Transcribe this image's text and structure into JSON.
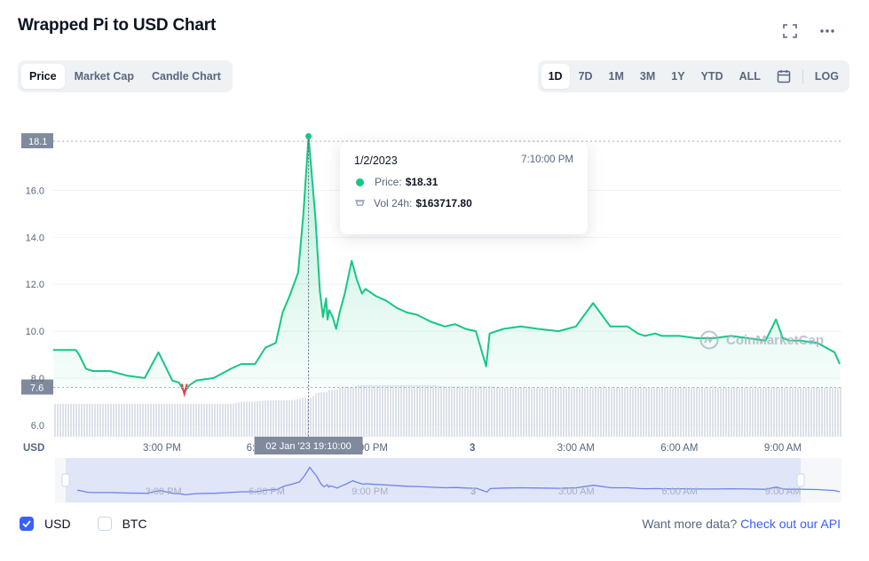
{
  "header": {
    "title": "Wrapped Pi to USD Chart",
    "icons": [
      "fullscreen-icon",
      "more-icon"
    ]
  },
  "view_tabs": [
    {
      "label": "Price",
      "active": true
    },
    {
      "label": "Market Cap",
      "active": false
    },
    {
      "label": "Candle Chart",
      "active": false
    }
  ],
  "range_tabs": [
    {
      "label": "1D",
      "active": true
    },
    {
      "label": "7D",
      "active": false
    },
    {
      "label": "1M",
      "active": false
    },
    {
      "label": "3M",
      "active": false
    },
    {
      "label": "1Y",
      "active": false
    },
    {
      "label": "YTD",
      "active": false
    },
    {
      "label": "ALL",
      "active": false
    }
  ],
  "log_label": "LOG",
  "tooltip": {
    "date": "1/2/2023",
    "time": "7:10:00 PM",
    "price_label": "Price:",
    "price_value": "$18.31",
    "vol_label": "Vol 24h:",
    "vol_value": "$163717.80"
  },
  "watermark": "CoinMarketCap",
  "currency_label": "USD",
  "crosshair_label": "02 Jan '23   19:10:00",
  "max_label": "18.1",
  "min_label": "7.6",
  "bottom": {
    "usd_label": "USD",
    "btc_label": "BTC",
    "usd_checked": true,
    "btc_checked": false,
    "more_data_text": "Want more data?",
    "api_link": "Check out our API"
  },
  "colors": {
    "up": "#16c784",
    "down": "#ea3943",
    "accent": "#3861fb"
  },
  "chart_data": {
    "type": "line",
    "title": "Wrapped Pi to USD Chart",
    "ylim": [
      5.5,
      19.2
    ],
    "yticks": [
      6.0,
      8.0,
      10.0,
      12.0,
      14.0,
      16.0
    ],
    "xticks": [
      "3:00 PM",
      "6:00 PM",
      "9:00 PM",
      "3",
      "3:00 AM",
      "6:00 AM",
      "9:00 AM"
    ],
    "x_hours": [
      0,
      0.1,
      0.3,
      0.5,
      1.0,
      1.5,
      2.0,
      2.4,
      2.8,
      3.0,
      3.15,
      3.3,
      3.5,
      4.0,
      4.5,
      4.8,
      5.2,
      5.5,
      5.8,
      6.0,
      6.2,
      6.45,
      6.6,
      6.75,
      6.95,
      7.08,
      7.17,
      7.2,
      7.26,
      7.3,
      7.35,
      7.45,
      7.55,
      7.65,
      7.8,
      8.0,
      8.15,
      8.3,
      8.4,
      8.5,
      8.7,
      9.0,
      9.3,
      9.6,
      9.9,
      10.3,
      10.7,
      11.0,
      11.3,
      11.6,
      11.9,
      12.0,
      12.4,
      12.9,
      13.4,
      14.0,
      14.5,
      15.0,
      15.5,
      16.0,
      16.3,
      16.5,
      16.8,
      17.0,
      17.5,
      18.0,
      18.5,
      19.0,
      19.5,
      20.0,
      20.3,
      20.5,
      20.7,
      21.0,
      21.5,
      22.0,
      22.15
    ],
    "price": [
      9.2,
      9.0,
      8.4,
      8.3,
      8.3,
      8.1,
      8.0,
      9.1,
      7.9,
      7.8,
      7.4,
      7.7,
      7.9,
      8.0,
      8.4,
      8.6,
      8.6,
      9.3,
      9.5,
      10.8,
      11.5,
      12.5,
      15.0,
      18.31,
      14.8,
      11.7,
      10.6,
      10.9,
      11.4,
      10.5,
      10.9,
      10.6,
      10.1,
      10.8,
      11.6,
      13.0,
      12.2,
      11.6,
      11.8,
      11.7,
      11.5,
      11.3,
      11.0,
      10.8,
      10.7,
      10.4,
      10.2,
      10.3,
      10.1,
      10.0,
      8.5,
      9.9,
      10.1,
      10.2,
      10.1,
      10.0,
      10.2,
      11.2,
      10.2,
      10.2,
      9.9,
      9.8,
      9.9,
      9.8,
      9.8,
      9.7,
      9.7,
      9.8,
      9.7,
      9.6,
      10.5,
      9.7,
      9.6,
      9.6,
      9.5,
      9.1,
      8.6
    ],
    "volume": [
      6.9,
      6.9,
      6.9,
      6.9,
      6.9,
      6.9,
      6.9,
      6.9,
      6.9,
      6.9,
      6.9,
      6.9,
      6.9,
      6.9,
      6.9,
      7.0,
      7.0,
      7.05,
      7.05,
      7.05,
      7.05,
      7.1,
      7.2,
      7.1,
      7.35,
      7.4,
      7.4,
      7.4,
      7.4,
      7.5,
      7.5,
      7.5,
      7.5,
      7.6,
      7.65,
      7.6,
      7.7,
      7.7,
      7.7,
      7.7,
      7.7,
      7.7,
      7.7,
      7.7,
      7.7,
      7.7,
      7.65,
      7.65,
      7.65,
      7.65,
      7.65,
      7.65,
      7.6,
      7.6,
      7.6,
      7.6,
      7.6,
      7.6,
      7.6,
      7.6,
      7.6,
      7.6,
      7.6,
      7.6,
      7.6,
      7.6,
      7.6,
      7.6,
      7.6,
      7.6,
      7.6,
      7.6,
      7.6,
      7.6,
      7.6,
      7.6,
      7.6
    ],
    "max_price": 18.1,
    "min_price": 7.6,
    "highlight": {
      "date": "1/2/2023",
      "time": "7:10:00 PM",
      "price": 18.31,
      "vol_24h": 163717.8
    }
  }
}
